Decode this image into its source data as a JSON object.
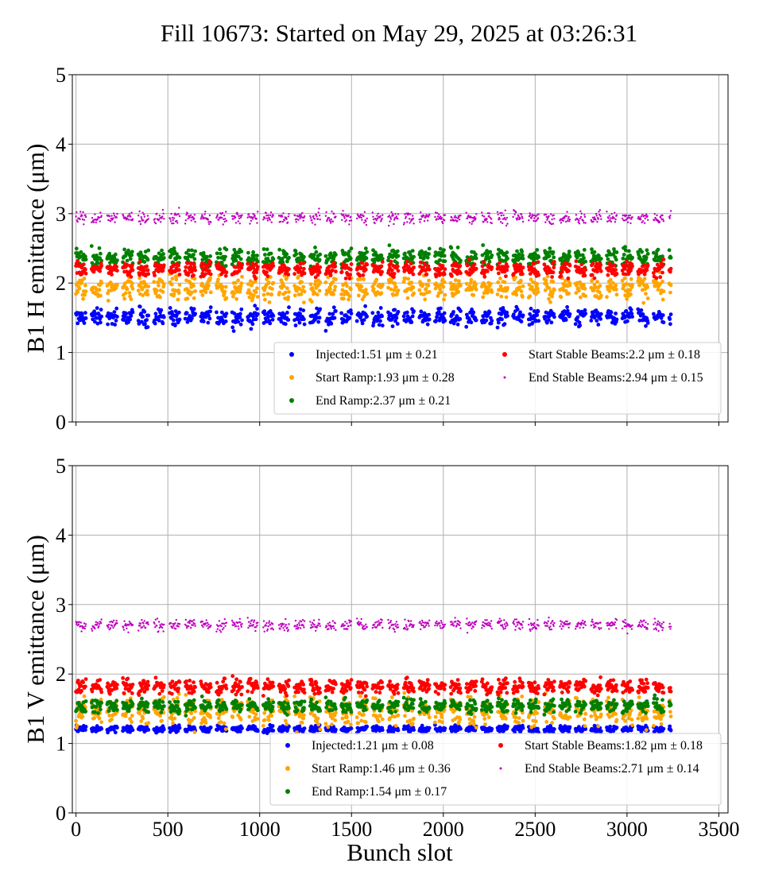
{
  "figure": {
    "title": "Fill 10673: Started on May 29, 2025 at 03:26:31",
    "xlabel": "Bunch slot"
  },
  "colors": {
    "Injected": "#0000ff",
    "Start Ramp": "#ffa500",
    "End Ramp": "#008000",
    "Start Stable Beams": "#ff0000",
    "End Stable Beams": "#bf00bf",
    "grid": "#b0b0b0"
  },
  "chart_data": [
    {
      "type": "scatter",
      "ylabel": "B1 H emittance (μm)",
      "xlim": [
        -20,
        3550
      ],
      "ylim": [
        0,
        5
      ],
      "xticks": [
        0,
        500,
        1000,
        1500,
        2000,
        2500,
        3000,
        3500
      ],
      "xtick_labels": [
        "",
        "",
        "",
        "",
        "",
        "",
        "",
        ""
      ],
      "yticks": [
        0,
        1,
        2,
        3,
        4,
        5
      ],
      "ytick_labels": [
        "0",
        "1",
        "2",
        "3",
        "4",
        "5"
      ],
      "grid": true,
      "legend_location": "lower right",
      "legend_columns": 2,
      "x_range_filled": [
        0,
        3240
      ],
      "train_spacing": 85,
      "series": [
        {
          "name": "Injected",
          "label": "Injected:1.51 μm ± 0.21",
          "mean": 1.51,
          "std": 0.21,
          "marker": "circle"
        },
        {
          "name": "Start Ramp",
          "label": "Start Ramp:1.93 μm ± 0.28",
          "mean": 1.93,
          "std": 0.28,
          "marker": "circle"
        },
        {
          "name": "End Ramp",
          "label": "End Ramp:2.37 μm ± 0.21",
          "mean": 2.37,
          "std": 0.21,
          "marker": "circle"
        },
        {
          "name": "Start Stable Beams",
          "label": "Start Stable Beams:2.2 μm ± 0.18",
          "mean": 2.2,
          "std": 0.18,
          "marker": "circle"
        },
        {
          "name": "End Stable Beams",
          "label": "End Stable Beams:2.94 μm ± 0.15",
          "mean": 2.94,
          "std": 0.15,
          "marker": "small-dot"
        }
      ]
    },
    {
      "type": "scatter",
      "ylabel": "B1 V emittance (μm)",
      "xlabel": "Bunch slot",
      "xlim": [
        -20,
        3550
      ],
      "ylim": [
        0,
        5
      ],
      "xticks": [
        0,
        500,
        1000,
        1500,
        2000,
        2500,
        3000,
        3500
      ],
      "xtick_labels": [
        "0",
        "500",
        "1000",
        "1500",
        "2000",
        "2500",
        "3000",
        "3500"
      ],
      "yticks": [
        0,
        1,
        2,
        3,
        4,
        5
      ],
      "ytick_labels": [
        "0",
        "1",
        "2",
        "3",
        "4",
        "5"
      ],
      "grid": true,
      "legend_location": "lower right",
      "legend_columns": 2,
      "x_range_filled": [
        0,
        3240
      ],
      "train_spacing": 85,
      "series": [
        {
          "name": "Injected",
          "label": "Injected:1.21 μm ± 0.08",
          "mean": 1.21,
          "std": 0.08,
          "marker": "circle"
        },
        {
          "name": "Start Ramp",
          "label": "Start Ramp:1.46 μm ± 0.36",
          "mean": 1.46,
          "std": 0.36,
          "marker": "circle"
        },
        {
          "name": "End Ramp",
          "label": "End Ramp:1.54 μm ± 0.17",
          "mean": 1.54,
          "std": 0.17,
          "marker": "circle"
        },
        {
          "name": "Start Stable Beams",
          "label": "Start Stable Beams:1.82 μm ± 0.18",
          "mean": 1.82,
          "std": 0.18,
          "marker": "circle"
        },
        {
          "name": "End Stable Beams",
          "label": "End Stable Beams:2.71 μm ± 0.14",
          "mean": 2.71,
          "std": 0.14,
          "marker": "small-dot"
        }
      ]
    }
  ]
}
